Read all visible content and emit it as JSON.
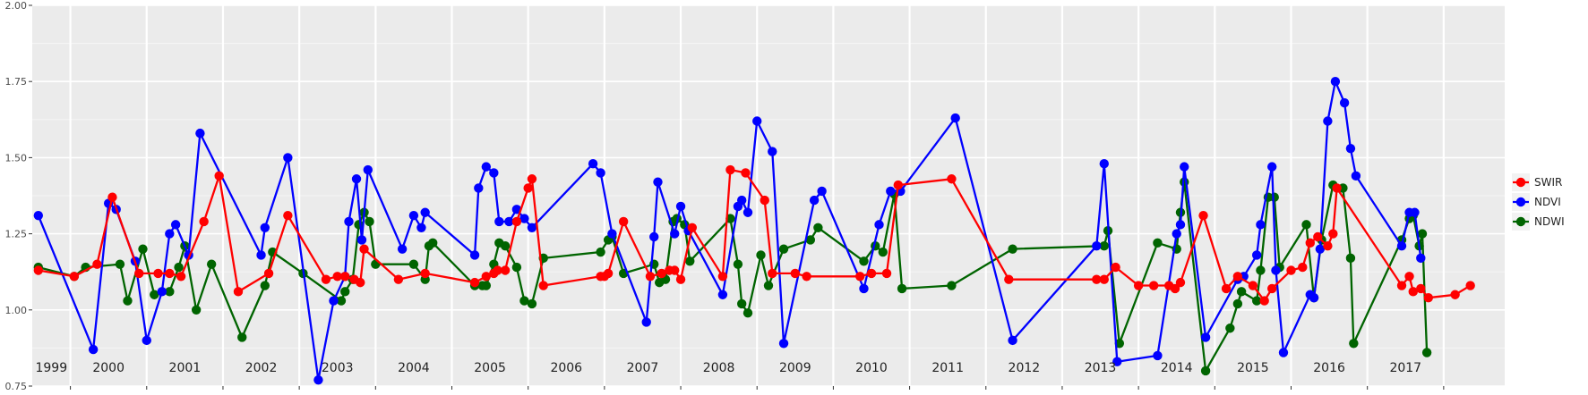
{
  "chart_data": {
    "type": "line",
    "title": "",
    "xlabel": "",
    "ylabel": "",
    "xlim": [
      1998.5,
      2017.8
    ],
    "ylim": [
      0.75,
      2.0
    ],
    "yticks": [
      "0.75",
      "1.00",
      "1.25",
      "1.50",
      "1.75",
      "2.00"
    ],
    "ytick_values": [
      0.75,
      1.0,
      1.25,
      1.5,
      1.75,
      2.0
    ],
    "year_labels": [
      "1999",
      "2000",
      "2001",
      "2002",
      "2003",
      "2004",
      "2005",
      "2006",
      "2007",
      "2008",
      "2009",
      "2010",
      "2011",
      "2012",
      "2013",
      "2014",
      "2015",
      "2016",
      "2017"
    ],
    "year_boundaries": [
      1999,
      2000,
      2001,
      2002,
      2003,
      2004,
      2005,
      2006,
      2007,
      2008,
      2009,
      2010,
      2011,
      2012,
      2013,
      2014,
      2015,
      2016,
      2017
    ],
    "grid": true,
    "legend_position": "right",
    "series": [
      {
        "name": "SWIR",
        "color": "#ff0000",
        "points": [
          [
            1998.58,
            1.13
          ],
          [
            1999.05,
            1.11
          ],
          [
            1999.35,
            1.15
          ],
          [
            1999.55,
            1.37
          ],
          [
            1999.9,
            1.12
          ],
          [
            2000.15,
            1.12
          ],
          [
            2000.3,
            1.12
          ],
          [
            2000.45,
            1.11
          ],
          [
            2000.75,
            1.29
          ],
          [
            2000.95,
            1.44
          ],
          [
            2001.2,
            1.06
          ],
          [
            2001.6,
            1.12
          ],
          [
            2001.85,
            1.31
          ],
          [
            2002.35,
            1.1
          ],
          [
            2002.5,
            1.11
          ],
          [
            2002.6,
            1.11
          ],
          [
            2002.72,
            1.1
          ],
          [
            2002.8,
            1.09
          ],
          [
            2002.85,
            1.2
          ],
          [
            2003.3,
            1.1
          ],
          [
            2003.65,
            1.12
          ],
          [
            2004.3,
            1.09
          ],
          [
            2004.45,
            1.11
          ],
          [
            2004.55,
            1.12
          ],
          [
            2004.6,
            1.13
          ],
          [
            2004.7,
            1.13
          ],
          [
            2004.85,
            1.29
          ],
          [
            2005.0,
            1.4
          ],
          [
            2005.05,
            1.43
          ],
          [
            2005.2,
            1.08
          ],
          [
            2005.95,
            1.11
          ],
          [
            2006.0,
            1.11
          ],
          [
            2006.05,
            1.12
          ],
          [
            2006.25,
            1.29
          ],
          [
            2006.6,
            1.11
          ],
          [
            2006.75,
            1.12
          ],
          [
            2006.85,
            1.13
          ],
          [
            2006.92,
            1.13
          ],
          [
            2007.0,
            1.1
          ],
          [
            2007.15,
            1.27
          ],
          [
            2007.55,
            1.11
          ],
          [
            2007.65,
            1.46
          ],
          [
            2007.85,
            1.45
          ],
          [
            2008.1,
            1.36
          ],
          [
            2008.2,
            1.12
          ],
          [
            2008.5,
            1.12
          ],
          [
            2008.65,
            1.11
          ],
          [
            2009.35,
            1.11
          ],
          [
            2009.5,
            1.12
          ],
          [
            2009.7,
            1.12
          ],
          [
            2009.85,
            1.41
          ],
          [
            2010.55,
            1.43
          ],
          [
            2011.3,
            1.1
          ],
          [
            2012.45,
            1.1
          ],
          [
            2012.55,
            1.1
          ],
          [
            2012.7,
            1.14
          ],
          [
            2013.0,
            1.08
          ],
          [
            2013.2,
            1.08
          ],
          [
            2013.4,
            1.08
          ],
          [
            2013.48,
            1.07
          ],
          [
            2013.55,
            1.09
          ],
          [
            2013.85,
            1.31
          ],
          [
            2014.15,
            1.07
          ],
          [
            2014.3,
            1.11
          ],
          [
            2014.5,
            1.08
          ],
          [
            2014.65,
            1.03
          ],
          [
            2014.75,
            1.07
          ],
          [
            2015.0,
            1.13
          ],
          [
            2015.15,
            1.14
          ],
          [
            2015.25,
            1.22
          ],
          [
            2015.35,
            1.24
          ],
          [
            2015.48,
            1.21
          ],
          [
            2015.55,
            1.25
          ],
          [
            2015.6,
            1.4
          ],
          [
            2016.45,
            1.08
          ],
          [
            2016.55,
            1.11
          ],
          [
            2016.6,
            1.06
          ],
          [
            2016.7,
            1.07
          ],
          [
            2016.8,
            1.04
          ],
          [
            2017.15,
            1.05
          ],
          [
            2017.35,
            1.08
          ]
        ]
      },
      {
        "name": "NDVI",
        "color": "#0000ff",
        "points": [
          [
            1998.58,
            1.31
          ],
          [
            1999.3,
            0.87
          ],
          [
            1999.5,
            1.35
          ],
          [
            1999.6,
            1.33
          ],
          [
            1999.85,
            1.16
          ],
          [
            2000.0,
            0.9
          ],
          [
            2000.2,
            1.06
          ],
          [
            2000.3,
            1.25
          ],
          [
            2000.38,
            1.28
          ],
          [
            2000.55,
            1.18
          ],
          [
            2000.7,
            1.58
          ],
          [
            2001.5,
            1.18
          ],
          [
            2001.55,
            1.27
          ],
          [
            2001.85,
            1.5
          ],
          [
            2002.25,
            0.77
          ],
          [
            2002.45,
            1.03
          ],
          [
            2002.6,
            1.11
          ],
          [
            2002.65,
            1.29
          ],
          [
            2002.75,
            1.43
          ],
          [
            2002.82,
            1.23
          ],
          [
            2002.9,
            1.46
          ],
          [
            2003.35,
            1.2
          ],
          [
            2003.5,
            1.31
          ],
          [
            2003.6,
            1.27
          ],
          [
            2003.65,
            1.32
          ],
          [
            2004.3,
            1.18
          ],
          [
            2004.35,
            1.4
          ],
          [
            2004.45,
            1.47
          ],
          [
            2004.55,
            1.45
          ],
          [
            2004.62,
            1.29
          ],
          [
            2004.75,
            1.29
          ],
          [
            2004.85,
            1.33
          ],
          [
            2004.95,
            1.3
          ],
          [
            2005.05,
            1.27
          ],
          [
            2005.85,
            1.48
          ],
          [
            2005.95,
            1.45
          ],
          [
            2006.1,
            1.25
          ],
          [
            2006.55,
            0.96
          ],
          [
            2006.65,
            1.24
          ],
          [
            2006.7,
            1.42
          ],
          [
            2006.92,
            1.25
          ],
          [
            2007.0,
            1.34
          ],
          [
            2007.1,
            1.26
          ],
          [
            2007.55,
            1.05
          ],
          [
            2007.75,
            1.34
          ],
          [
            2007.8,
            1.36
          ],
          [
            2007.88,
            1.32
          ],
          [
            2008.0,
            1.62
          ],
          [
            2008.2,
            1.52
          ],
          [
            2008.35,
            0.89
          ],
          [
            2008.75,
            1.36
          ],
          [
            2008.85,
            1.39
          ],
          [
            2009.4,
            1.07
          ],
          [
            2009.6,
            1.28
          ],
          [
            2009.75,
            1.39
          ],
          [
            2009.88,
            1.39
          ],
          [
            2010.6,
            1.63
          ],
          [
            2011.35,
            0.9
          ],
          [
            2012.45,
            1.21
          ],
          [
            2012.55,
            1.48
          ],
          [
            2012.72,
            0.83
          ],
          [
            2013.25,
            0.85
          ],
          [
            2013.5,
            1.25
          ],
          [
            2013.55,
            1.28
          ],
          [
            2013.6,
            1.47
          ],
          [
            2013.88,
            0.91
          ],
          [
            2014.3,
            1.1
          ],
          [
            2014.38,
            1.11
          ],
          [
            2014.55,
            1.18
          ],
          [
            2014.6,
            1.28
          ],
          [
            2014.75,
            1.47
          ],
          [
            2014.8,
            1.13
          ],
          [
            2014.9,
            0.86
          ],
          [
            2015.25,
            1.05
          ],
          [
            2015.3,
            1.04
          ],
          [
            2015.38,
            1.2
          ],
          [
            2015.48,
            1.62
          ],
          [
            2015.58,
            1.75
          ],
          [
            2015.7,
            1.68
          ],
          [
            2015.78,
            1.53
          ],
          [
            2015.85,
            1.44
          ],
          [
            2016.45,
            1.21
          ],
          [
            2016.55,
            1.32
          ],
          [
            2016.62,
            1.32
          ],
          [
            2016.7,
            1.17
          ]
        ]
      },
      {
        "name": "NDWI",
        "color": "#006400",
        "points": [
          [
            1998.58,
            1.14
          ],
          [
            1999.05,
            1.11
          ],
          [
            1999.2,
            1.14
          ],
          [
            1999.65,
            1.15
          ],
          [
            1999.75,
            1.03
          ],
          [
            1999.95,
            1.2
          ],
          [
            2000.1,
            1.05
          ],
          [
            2000.3,
            1.06
          ],
          [
            2000.42,
            1.14
          ],
          [
            2000.5,
            1.21
          ],
          [
            2000.65,
            1.0
          ],
          [
            2000.85,
            1.15
          ],
          [
            2001.25,
            0.91
          ],
          [
            2001.55,
            1.08
          ],
          [
            2001.65,
            1.19
          ],
          [
            2002.05,
            1.12
          ],
          [
            2002.55,
            1.03
          ],
          [
            2002.6,
            1.06
          ],
          [
            2002.7,
            1.1
          ],
          [
            2002.78,
            1.28
          ],
          [
            2002.85,
            1.32
          ],
          [
            2002.92,
            1.29
          ],
          [
            2003.0,
            1.15
          ],
          [
            2003.5,
            1.15
          ],
          [
            2003.65,
            1.1
          ],
          [
            2003.7,
            1.21
          ],
          [
            2003.75,
            1.22
          ],
          [
            2004.3,
            1.08
          ],
          [
            2004.4,
            1.08
          ],
          [
            2004.45,
            1.08
          ],
          [
            2004.55,
            1.15
          ],
          [
            2004.62,
            1.22
          ],
          [
            2004.7,
            1.21
          ],
          [
            2004.85,
            1.14
          ],
          [
            2004.95,
            1.03
          ],
          [
            2005.05,
            1.02
          ],
          [
            2005.2,
            1.17
          ],
          [
            2005.95,
            1.19
          ],
          [
            2006.05,
            1.23
          ],
          [
            2006.1,
            1.24
          ],
          [
            2006.25,
            1.12
          ],
          [
            2006.65,
            1.15
          ],
          [
            2006.72,
            1.09
          ],
          [
            2006.8,
            1.1
          ],
          [
            2006.9,
            1.29
          ],
          [
            2006.95,
            1.3
          ],
          [
            2007.05,
            1.28
          ],
          [
            2007.12,
            1.16
          ],
          [
            2007.65,
            1.3
          ],
          [
            2007.75,
            1.15
          ],
          [
            2007.8,
            1.02
          ],
          [
            2007.88,
            0.99
          ],
          [
            2008.05,
            1.18
          ],
          [
            2008.15,
            1.08
          ],
          [
            2008.35,
            1.2
          ],
          [
            2008.7,
            1.23
          ],
          [
            2008.8,
            1.27
          ],
          [
            2009.4,
            1.16
          ],
          [
            2009.55,
            1.21
          ],
          [
            2009.65,
            1.19
          ],
          [
            2009.8,
            1.38
          ],
          [
            2009.9,
            1.07
          ],
          [
            2010.55,
            1.08
          ],
          [
            2011.35,
            1.2
          ],
          [
            2012.55,
            1.21
          ],
          [
            2012.6,
            1.26
          ],
          [
            2012.75,
            0.89
          ],
          [
            2013.25,
            1.22
          ],
          [
            2013.5,
            1.2
          ],
          [
            2013.55,
            1.32
          ],
          [
            2013.6,
            1.42
          ],
          [
            2013.88,
            0.8
          ],
          [
            2014.2,
            0.94
          ],
          [
            2014.3,
            1.02
          ],
          [
            2014.35,
            1.06
          ],
          [
            2014.55,
            1.03
          ],
          [
            2014.6,
            1.13
          ],
          [
            2014.7,
            1.37
          ],
          [
            2014.78,
            1.37
          ],
          [
            2014.85,
            1.14
          ],
          [
            2015.2,
            1.28
          ],
          [
            2015.3,
            1.04
          ],
          [
            2015.4,
            1.23
          ],
          [
            2015.55,
            1.41
          ],
          [
            2015.68,
            1.4
          ],
          [
            2015.78,
            1.17
          ],
          [
            2015.82,
            0.89
          ],
          [
            2016.45,
            1.23
          ],
          [
            2016.55,
            1.3
          ],
          [
            2016.6,
            1.31
          ],
          [
            2016.68,
            1.21
          ],
          [
            2016.72,
            1.25
          ],
          [
            2016.78,
            0.86
          ]
        ]
      }
    ]
  }
}
